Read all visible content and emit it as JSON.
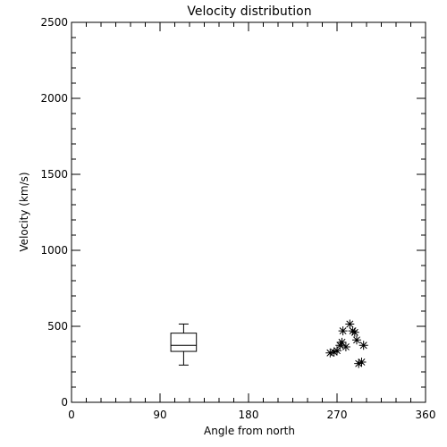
{
  "chart_data": {
    "type": "scatter",
    "title": "Velocity distribution",
    "xlabel": "Angle from north",
    "ylabel": "Velocity (km/s)",
    "xlim": [
      0,
      360
    ],
    "ylim": [
      0,
      2500
    ],
    "xticks": [
      0,
      90,
      180,
      270,
      360
    ],
    "xtick_labels": [
      "0",
      "90",
      "180",
      "270",
      "360"
    ],
    "yticks": [
      0,
      500,
      1000,
      1500,
      2000,
      2500
    ],
    "ytick_labels": [
      "0",
      "500",
      "1000",
      "1500",
      "2000",
      "2500"
    ],
    "grid": false,
    "legend": "none",
    "boxplot": {
      "x": 114,
      "x_halfwidth": 13,
      "whisker_low": 245,
      "q1": 335,
      "median": 375,
      "q3": 455,
      "whisker_high": 515,
      "cap_halfwidth": 5
    },
    "points": [
      {
        "x": 263,
        "y": 325
      },
      {
        "x": 267,
        "y": 330
      },
      {
        "x": 270,
        "y": 340
      },
      {
        "x": 273,
        "y": 375
      },
      {
        "x": 275,
        "y": 395
      },
      {
        "x": 276,
        "y": 470
      },
      {
        "x": 279,
        "y": 365
      },
      {
        "x": 283,
        "y": 515
      },
      {
        "x": 286,
        "y": 470
      },
      {
        "x": 288,
        "y": 460
      },
      {
        "x": 290,
        "y": 410
      },
      {
        "x": 292,
        "y": 255
      },
      {
        "x": 295,
        "y": 265
      },
      {
        "x": 297,
        "y": 375
      }
    ],
    "colors": {
      "axes": "#000000",
      "marks": "#000000",
      "background": "#ffffff"
    }
  }
}
